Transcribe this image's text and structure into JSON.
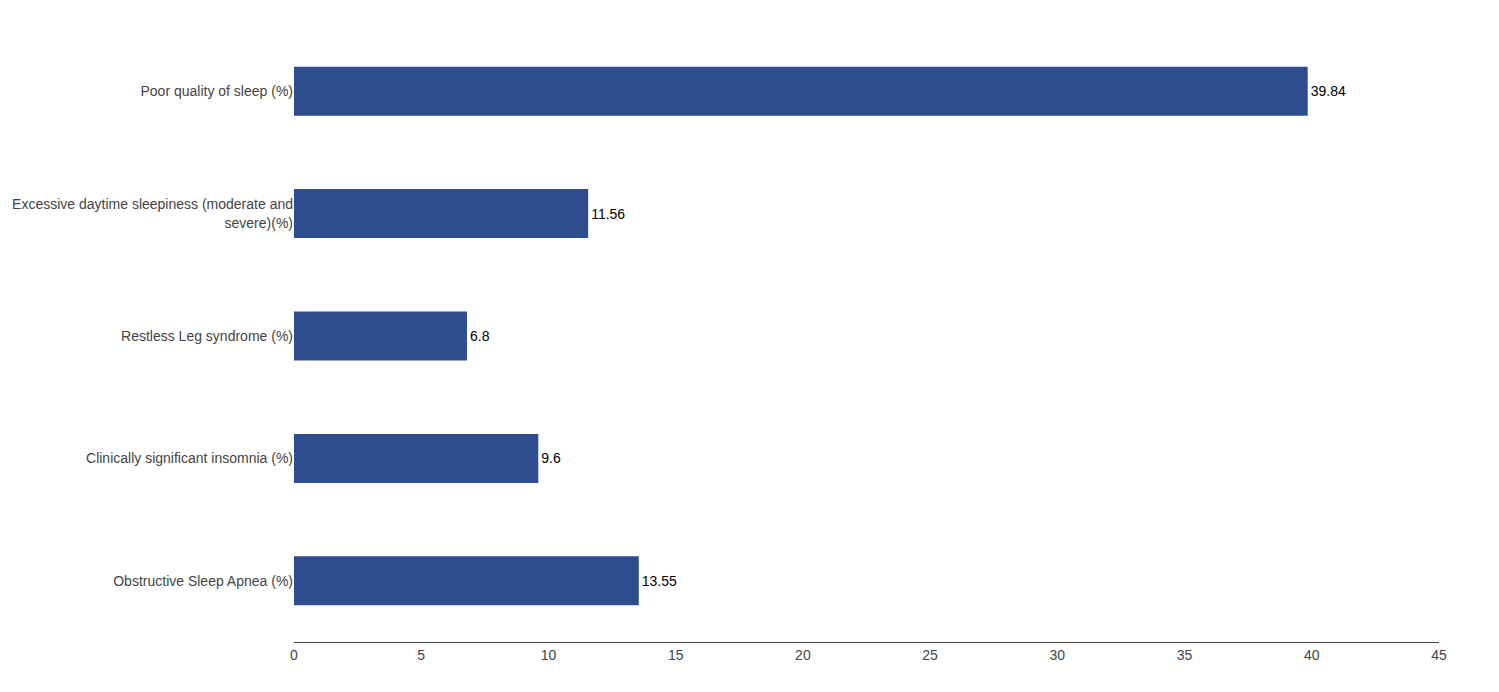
{
  "chart_data": {
    "type": "bar",
    "orientation": "horizontal",
    "categories": [
      "Obstructive Sleep Apnea (%)",
      "Clinically significant insomnia (%)",
      "Restless Leg syndrome (%)",
      "Excessive daytime sleepiness (moderate and\n    severe)(%)",
      "Poor quality of sleep (%)"
    ],
    "values": [
      13.55,
      9.6,
      6.8,
      11.56,
      39.84
    ],
    "value_labels": [
      "13.55",
      "9.6",
      "6.8",
      "11.56",
      "39.84"
    ],
    "color": "#2e4d8e",
    "xlim": [
      0,
      45
    ],
    "xticks": [
      0,
      5,
      10,
      15,
      20,
      25,
      30,
      35,
      40,
      45
    ],
    "data_labels": true,
    "grid": false
  }
}
